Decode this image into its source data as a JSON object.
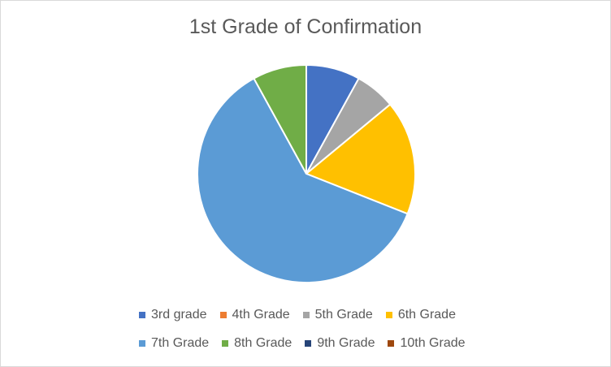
{
  "chart_data": {
    "type": "pie",
    "title": "1st Grade of Confirmation",
    "categories": [
      "3rd grade",
      "4th Grade",
      "5th Grade",
      "6th Grade",
      "7th Grade",
      "8th Grade",
      "9th Grade",
      "10th Grade"
    ],
    "values": [
      8,
      0,
      6,
      17,
      61,
      8,
      0,
      0
    ],
    "colors": [
      "#4472c4",
      "#ed7d31",
      "#a5a5a5",
      "#ffc000",
      "#5b9bd5",
      "#70ad47",
      "#264478",
      "#9e480e"
    ],
    "start_angle_deg": 0,
    "direction": "clockwise",
    "legend_position": "bottom"
  }
}
